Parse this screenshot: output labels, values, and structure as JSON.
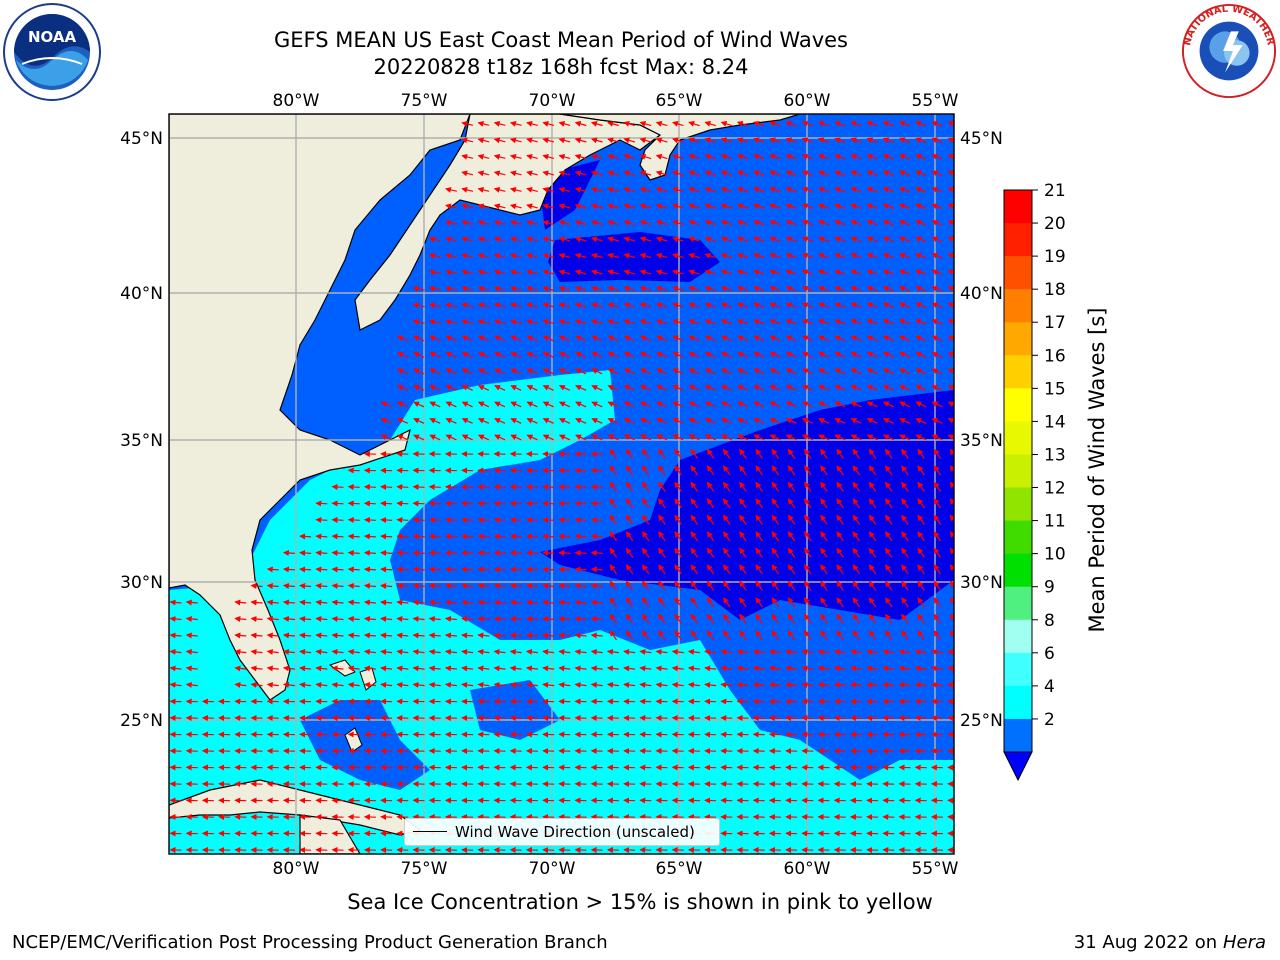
{
  "header": {
    "title_line1": "GEFS MEAN US East Coast Mean Period of Wind Waves",
    "title_line2": "20220828 t18z 168h fcst   Max: 8.24"
  },
  "logos": {
    "left": "NOAA",
    "right": "NATIONAL WEATHER SERVICE"
  },
  "map": {
    "lon_ticks": [
      "80°W",
      "75°W",
      "70°W",
      "65°W",
      "60°W",
      "55°W"
    ],
    "lat_ticks": [
      "45°N",
      "40°N",
      "35°N",
      "30°N",
      "25°N"
    ],
    "legend_label": "Wind Wave Direction (unscaled)",
    "arrow_color": "#ff0000",
    "land_color": "#efeedc",
    "field_colors": {
      "2-4": "#0055ff",
      "4-6": "#00ffff",
      "below-2": "#0000ee"
    }
  },
  "colorbar": {
    "label": "Mean Period of Wind Waves [s]",
    "ticks": [
      "21",
      "20",
      "19",
      "18",
      "17",
      "16",
      "15",
      "14",
      "13",
      "12",
      "11",
      "10",
      "9",
      "8",
      "6",
      "4",
      "2"
    ],
    "colors": [
      "#ff0000",
      "#ff2000",
      "#ff5000",
      "#ff8000",
      "#ffa800",
      "#ffd000",
      "#ffff00",
      "#e8f800",
      "#c8f000",
      "#90e400",
      "#40dc00",
      "#00e000",
      "#50f080",
      "#a0fff0",
      "#40ffff",
      "#00ffff",
      "#0070ff"
    ],
    "extend_color": "#0000ff"
  },
  "notes": {
    "sea_ice": "Sea Ice Concentration > 15% is shown in pink to yellow"
  },
  "footer": {
    "left": "NCEP/EMC/Verification Post Processing Product Generation Branch",
    "date": "31 Aug 2022 on",
    "machine": "Hera"
  }
}
